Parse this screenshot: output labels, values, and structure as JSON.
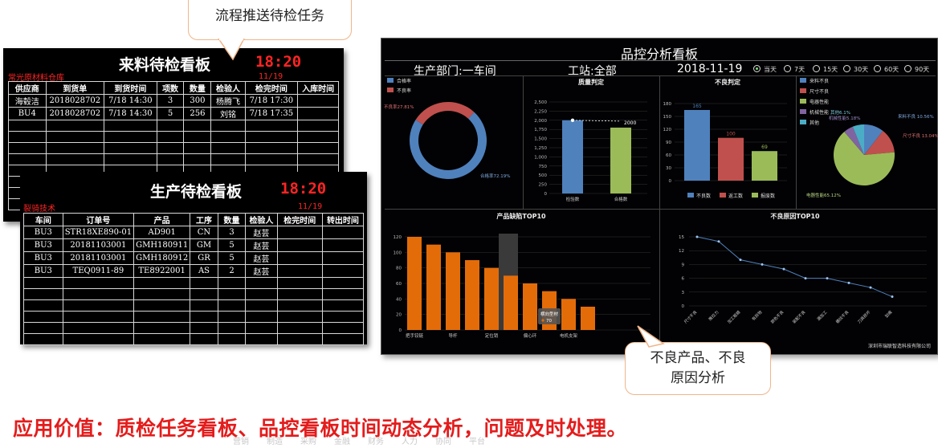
{
  "callouts": {
    "top": "流程推送待检任务",
    "bottom_line1": "不良产品、不良",
    "bottom_line2": "原因分析"
  },
  "incoming_board": {
    "title": "来料待检看板",
    "clock": "18:20",
    "org": "常光原材料仓库",
    "date": "11/19",
    "headers": [
      "供应商",
      "到货单",
      "到货时间",
      "项数",
      "数量",
      "检验人",
      "检完时间",
      "入库时间"
    ],
    "rows": [
      [
        "海毂洁",
        "2018028702",
        "7/18 14:30",
        "3",
        "300",
        "杨腾飞",
        "7/18 17:30",
        ""
      ],
      [
        "BU4",
        "2018028702",
        "7/18 14:30",
        "5",
        "256",
        "刘铭",
        "7/18 17:35",
        ""
      ]
    ]
  },
  "production_board": {
    "title": "生产待检看板",
    "clock": "18:20",
    "org": "裂骑技术",
    "date": "11/19",
    "headers": [
      "车间",
      "订单号",
      "产品",
      "工序",
      "数量",
      "检验人",
      "检完时间",
      "转出时间"
    ],
    "rows": [
      [
        "BU3",
        "STR18XE890-01",
        "AD901",
        "CN",
        "3",
        "赵芸",
        "",
        ""
      ],
      [
        "BU3",
        "20181103001",
        "GMH180911",
        "GM",
        "5",
        "赵芸",
        "",
        ""
      ],
      [
        "BU3",
        "20181103001",
        "GMH180912",
        "GR",
        "5",
        "赵芸",
        "",
        ""
      ],
      [
        "BU3",
        "TEQ0911-89",
        "TE8922001",
        "AS",
        "2",
        "赵芸",
        "",
        ""
      ]
    ]
  },
  "qc_board": {
    "title": "品控分析看板",
    "dept": "生产部门:一车间",
    "station": "工站:全部",
    "date": "2018-11-19",
    "ranges": [
      "当天",
      "7天",
      "15天",
      "30天",
      "60天",
      "90天"
    ],
    "selected_range": "当天",
    "footer": "深圳市瑞联智造科技有限公司",
    "colors": {
      "blue": "#4f81bd",
      "red": "#c0504d",
      "green": "#9bbb59",
      "purple": "#8064a2",
      "cyan": "#4bacc6",
      "orange": "#e36c09"
    }
  },
  "chart_data": [
    {
      "type": "pie",
      "variant": "donut",
      "labels": [
        "合格率",
        "不良率"
      ],
      "values": [
        72.19,
        27.81
      ],
      "slice_labels": [
        "合格率72.19%",
        "不良率27.81%"
      ]
    },
    {
      "type": "bar",
      "title": "质量判定",
      "categories": [
        "检验数",
        "合格数"
      ],
      "values": [
        2000,
        1800
      ],
      "data_label": "2000",
      "ylim": [
        0,
        2500
      ],
      "yticks": [
        "2,500",
        "2,250",
        "2,000",
        "1,750",
        "1,500",
        "1,250",
        "1,000",
        "750",
        "500",
        "250",
        "0"
      ]
    },
    {
      "type": "bar",
      "title": "不良判定",
      "categories": [
        "不良数",
        "返工数",
        "报废数"
      ],
      "values": [
        165,
        100,
        69
      ],
      "data_labels": [
        "165",
        "100",
        "69"
      ],
      "ylim": [
        0,
        180
      ],
      "yticks": [
        "180",
        "150",
        "120",
        "90",
        "60",
        "30",
        "0"
      ],
      "legend": [
        "不良数",
        "返工数",
        "报废数"
      ]
    },
    {
      "type": "pie",
      "labels": [
        "来料不良",
        "尺寸不良",
        "电器性能",
        "机械性能",
        "其他"
      ],
      "values": [
        10.56,
        13.04,
        65.12,
        5.18,
        6.1
      ],
      "slice_labels": [
        "来料不良 10.56%",
        "尺寸不良 13.04%",
        "电器性能65.12%",
        "机械性能5.18%",
        "其他6.1%"
      ],
      "legend": [
        "来料不良",
        "尺寸不良",
        "电器性能",
        "机械性能",
        "其他"
      ]
    },
    {
      "type": "bar",
      "title": "产品缺陷TOP10",
      "values": [
        120,
        110,
        100,
        90,
        80,
        70,
        60,
        50,
        40,
        30
      ],
      "tick_labels": [
        "把手铰链",
        "",
        "导杆",
        "",
        "定位销",
        "",
        "偏心环",
        "",
        "电机支架",
        ""
      ],
      "ylim": [
        0,
        120
      ],
      "yticks": [
        "120",
        "100",
        "80",
        "60",
        "40",
        "20",
        "0"
      ],
      "tooltip_name": "横向型材",
      "tooltip_value": "70"
    },
    {
      "type": "line",
      "title": "不良原因TOP10",
      "values": [
        15,
        14,
        10,
        9,
        8,
        6,
        6,
        5,
        4,
        2
      ],
      "categories": [
        "尺寸不良",
        "推拉力",
        "加工粗糙",
        "有异物",
        "颜色不良",
        "装配不良",
        "漏加工",
        "螺纹不良",
        "刀具损坏",
        "划痕"
      ],
      "ylim": [
        0,
        15
      ],
      "yticks": [
        "15",
        "12",
        "9",
        "6",
        "3",
        "0"
      ]
    }
  ],
  "slogan": "应用价值：质检任务看板、品控看板时间动态分析，问题及时处理。",
  "footer_nav": [
    "营销",
    "制造",
    "采购",
    "金融",
    "财务",
    "人力",
    "协同",
    "平台"
  ]
}
